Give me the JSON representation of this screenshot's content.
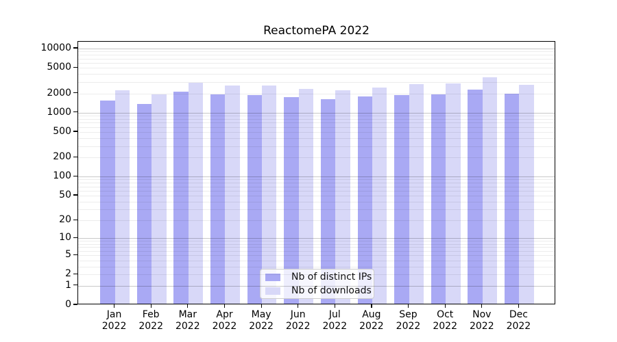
{
  "title": "ReactomePA 2022",
  "colors": {
    "distinct_ips": "#a9a9f4",
    "downloads": "#d8d8f8",
    "grid_major": "#c9c9c9",
    "grid_minor": "#ececec",
    "axis": "#000000",
    "legend_border": "#cccccc"
  },
  "chart_data": {
    "type": "bar",
    "title": "ReactomePA 2022",
    "categories": [
      "Jan 2022",
      "Feb 2022",
      "Mar 2022",
      "Apr 2022",
      "May 2022",
      "Jun 2022",
      "Jul 2022",
      "Aug 2022",
      "Sep 2022",
      "Oct 2022",
      "Nov 2022",
      "Dec 2022"
    ],
    "series": [
      {
        "name": "Nb of distinct IPs",
        "color": "#a9a9f4",
        "values": [
          1460,
          1310,
          2030,
          1820,
          1780,
          1660,
          1540,
          1690,
          1780,
          1850,
          2180,
          1870
        ]
      },
      {
        "name": "Nb of downloads",
        "color": "#d8d8f8",
        "values": [
          2110,
          1850,
          2810,
          2510,
          2510,
          2220,
          2130,
          2330,
          2630,
          2700,
          3420,
          2610
        ]
      }
    ],
    "xlabel": "",
    "ylabel": "",
    "yscale": "log1p",
    "ylim": [
      0,
      12800
    ],
    "yticks": [
      0,
      1,
      2,
      5,
      10,
      20,
      50,
      100,
      200,
      500,
      1000,
      2000,
      5000,
      10000
    ],
    "grid": true,
    "grid_on_top": true,
    "legend_position": "lower center"
  }
}
